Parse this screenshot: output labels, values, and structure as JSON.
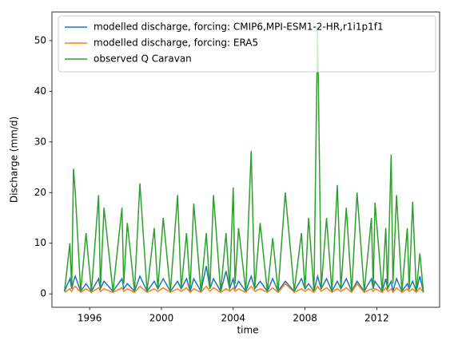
{
  "chart_data": {
    "type": "line",
    "xlabel": "time",
    "ylabel": "Discharge (mm/d)",
    "x": [
      1994.6,
      1994.9,
      1995.0,
      1995.1,
      1995.2,
      1995.5,
      1995.8,
      1996.1,
      1996.5,
      1996.6,
      1996.8,
      1997.3,
      1997.8,
      1997.9,
      1998.1,
      1998.5,
      1998.8,
      1999.2,
      1999.6,
      1999.8,
      2000.1,
      2000.5,
      2000.9,
      2001.1,
      2001.4,
      2001.6,
      2001.8,
      2002.2,
      2002.5,
      2002.7,
      2002.9,
      2003.3,
      2003.6,
      2003.8,
      2004.0,
      2004.1,
      2004.3,
      2004.7,
      2005.0,
      2005.2,
      2005.5,
      2005.9,
      2006.2,
      2006.5,
      2006.9,
      2007.4,
      2007.8,
      2008.0,
      2008.2,
      2008.5,
      2008.7,
      2008.9,
      2009.2,
      2009.5,
      2009.8,
      2010.0,
      2010.3,
      2010.6,
      2010.9,
      2011.3,
      2011.7,
      2011.8,
      2011.9,
      2012.3,
      2012.5,
      2012.6,
      2012.8,
      2012.9,
      2013.1,
      2013.4,
      2013.7,
      2013.8,
      2014.0,
      2014.2,
      2014.4,
      2014.6
    ],
    "series": [
      {
        "name": "modelled discharge, forcing: CMIP6,MPI-ESM1-2-HR,r1i1p1f1",
        "color": "#1f77b4",
        "values": [
          0.5,
          3,
          1,
          2.5,
          3.5,
          0.5,
          2,
          0.5,
          3,
          1,
          2.5,
          0.5,
          3,
          1,
          2,
          0.5,
          3.5,
          0.5,
          2.5,
          1,
          3,
          0.5,
          2.5,
          1,
          3,
          0.5,
          3,
          0.5,
          5.5,
          1,
          3,
          0.5,
          4.5,
          1,
          3,
          1,
          2.5,
          0.5,
          3.5,
          1,
          2.5,
          0.5,
          3,
          0.5,
          2.5,
          0.5,
          3,
          1,
          2,
          0.5,
          3.5,
          1,
          3,
          0.5,
          2.5,
          1,
          3,
          0.5,
          2.5,
          0.5,
          3,
          1,
          2.5,
          0.5,
          3,
          1,
          2.5,
          0.5,
          3,
          0.5,
          2,
          1,
          2.5,
          0.5,
          3.5,
          0.3
        ]
      },
      {
        "name": "modelled discharge, forcing: ERA5",
        "color": "#ff7f0e",
        "values": [
          0.3,
          1,
          0.5,
          1.2,
          1.5,
          0.3,
          1,
          0.3,
          1.2,
          0.5,
          1,
          0.3,
          1.2,
          0.5,
          1,
          0.3,
          1.5,
          0.3,
          1,
          0.5,
          1.2,
          0.3,
          1,
          0.5,
          1.2,
          0.3,
          1,
          0.3,
          1.5,
          0.5,
          1.2,
          0.3,
          1,
          0.5,
          1.2,
          0.5,
          1,
          0.3,
          1.5,
          0.5,
          1,
          0.3,
          1.2,
          0.3,
          2,
          0.3,
          1,
          0.5,
          1,
          0.3,
          1.5,
          0.5,
          1.2,
          0.3,
          1,
          0.5,
          1.2,
          0.3,
          2,
          0.3,
          1,
          0.5,
          1,
          0.3,
          1.2,
          0.5,
          1,
          0.3,
          1.2,
          0.3,
          1,
          0.5,
          1,
          0.3,
          1.2,
          0.3
        ]
      },
      {
        "name": "observed Q Caravan",
        "color": "#2ca02c",
        "values": [
          0.5,
          10,
          1,
          24.7,
          20,
          0.5,
          12,
          0.5,
          19.5,
          1,
          17,
          0.5,
          17,
          2,
          14,
          0.5,
          21.8,
          0.5,
          13,
          1,
          15,
          0.5,
          19.5,
          1,
          12,
          1,
          17.8,
          0.5,
          12,
          1,
          19.5,
          0.5,
          12,
          1,
          21,
          2,
          13,
          0.5,
          28.2,
          1,
          14,
          0.5,
          11,
          0.5,
          20,
          0.5,
          12,
          1,
          15,
          0.5,
          53,
          1,
          15,
          0.5,
          21.5,
          1,
          17,
          0.5,
          20,
          0.5,
          15,
          1,
          18,
          0.5,
          13,
          1,
          27.5,
          2,
          19.5,
          0.5,
          13,
          1,
          18.2,
          0.5,
          8,
          0.3
        ]
      }
    ],
    "xlim": [
      1993.9,
      2015.5
    ],
    "xticks": [
      1996,
      2000,
      2004,
      2008,
      2012
    ],
    "ylim": [
      -2.65,
      55.65
    ],
    "yticks": [
      0,
      10,
      20,
      30,
      40,
      50
    ],
    "grid": false,
    "legend": "upper right"
  }
}
